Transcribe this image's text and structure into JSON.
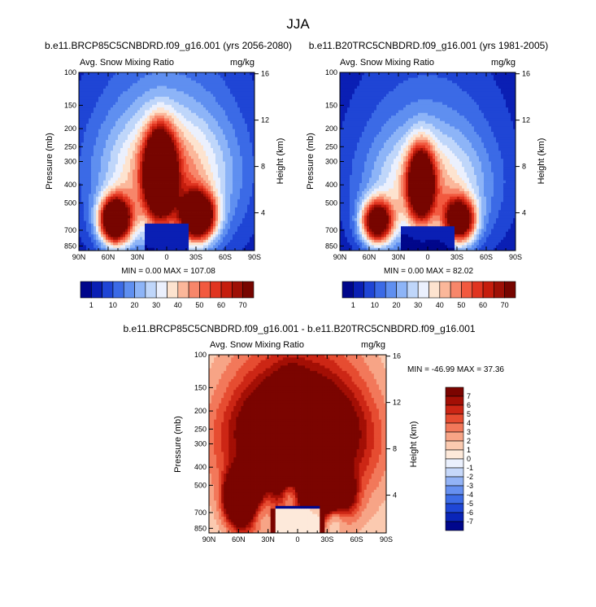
{
  "title": "JJA",
  "chart_data": [
    {
      "type": "heatmap",
      "title": "b.e11.BRCP85C5CNBDRD.f09_g16.001 (yrs 2056-2080)",
      "subtitle_left": "Avg. Snow Mixing Ratio",
      "units": "mg/kg",
      "xlabel": "",
      "ylabel": "Pressure (mb)",
      "y2label": "Height (km)",
      "xticks": [
        "90N",
        "60N",
        "30N",
        "0",
        "30S",
        "60S",
        "90S"
      ],
      "yticks": [
        "100",
        "150",
        "200",
        "250",
        "300",
        "400",
        "500",
        "700",
        "850"
      ],
      "y2ticks": [
        "16",
        "12",
        "8",
        "4"
      ],
      "stats": "MIN =   0.00  MAX = 107.08",
      "min": 0.0,
      "max": 107.08,
      "color_levels": [
        "1",
        "10",
        "20",
        "30",
        "40",
        "50",
        "60",
        "70"
      ],
      "features": [
        {
          "lat": 53,
          "p": 620,
          "value": 100
        },
        {
          "lat": 7,
          "p": 330,
          "value": 107
        },
        {
          "lat": -32,
          "p": 580,
          "value": 95
        }
      ]
    },
    {
      "type": "heatmap",
      "title": "b.e11.B20TRC5CNBDRD.f09_g16.001 (yrs 1981-2005)",
      "subtitle_left": "Avg. Snow Mixing Ratio",
      "units": "mg/kg",
      "xlabel": "",
      "ylabel": "Pressure (mb)",
      "y2label": "Height (km)",
      "xticks": [
        "90N",
        "60N",
        "30N",
        "0",
        "30S",
        "60S",
        "90S"
      ],
      "yticks": [
        "100",
        "150",
        "200",
        "250",
        "300",
        "400",
        "500",
        "700",
        "850"
      ],
      "y2ticks": [
        "16",
        "12",
        "8",
        "4"
      ],
      "stats": "MIN =   0.00  MAX = 82.02",
      "min": 0.0,
      "max": 82.02,
      "color_levels": [
        "1",
        "10",
        "20",
        "30",
        "40",
        "50",
        "60",
        "70"
      ],
      "features": [
        {
          "lat": 52,
          "p": 640,
          "value": 82
        },
        {
          "lat": 7,
          "p": 360,
          "value": 80
        },
        {
          "lat": -33,
          "p": 600,
          "value": 78
        }
      ]
    },
    {
      "type": "heatmap",
      "title": "b.e11.BRCP85C5CNBDRD.f09_g16.001 - b.e11.B20TRC5CNBDRD.f09_g16.001",
      "subtitle_left": "Avg. Snow Mixing Ratio",
      "units": "mg/kg",
      "xlabel": "",
      "ylabel": "Pressure (mb)",
      "y2label": "Height (km)",
      "xticks": [
        "90N",
        "60N",
        "30N",
        "0",
        "30S",
        "60S",
        "90S"
      ],
      "yticks": [
        "100",
        "150",
        "200",
        "250",
        "300",
        "400",
        "500",
        "700",
        "850"
      ],
      "y2ticks": [
        "16",
        "12",
        "8",
        "4"
      ],
      "stats": "MIN = -46.99  MAX =  37.36",
      "min": -46.99,
      "max": 37.36,
      "color_levels": [
        "7",
        "6",
        "5",
        "4",
        "3",
        "2",
        "1",
        "0",
        "-1",
        "-2",
        "-3",
        "-4",
        "-5",
        "-6",
        "-7"
      ]
    }
  ],
  "colors": {
    "abs_palette": [
      "#00068b",
      "#0a1fb4",
      "#1f45d5",
      "#3b6ae6",
      "#5f8ff0",
      "#8db4f7",
      "#bfd6fa",
      "#ebf0fd",
      "#fde3cf",
      "#fbb79a",
      "#f7866a",
      "#f2593f",
      "#e03420",
      "#c51d0d",
      "#9e1006",
      "#770500"
    ],
    "diff_palette": [
      "#00078c",
      "#0a25b8",
      "#1f47d6",
      "#3d6ce6",
      "#6690f0",
      "#93b3f6",
      "#c6d8fa",
      "#eaf0fd",
      "#fde9da",
      "#fbcab0",
      "#f7a486",
      "#f2785a",
      "#e64c31",
      "#cc2615",
      "#a30f05",
      "#7b0400"
    ]
  }
}
